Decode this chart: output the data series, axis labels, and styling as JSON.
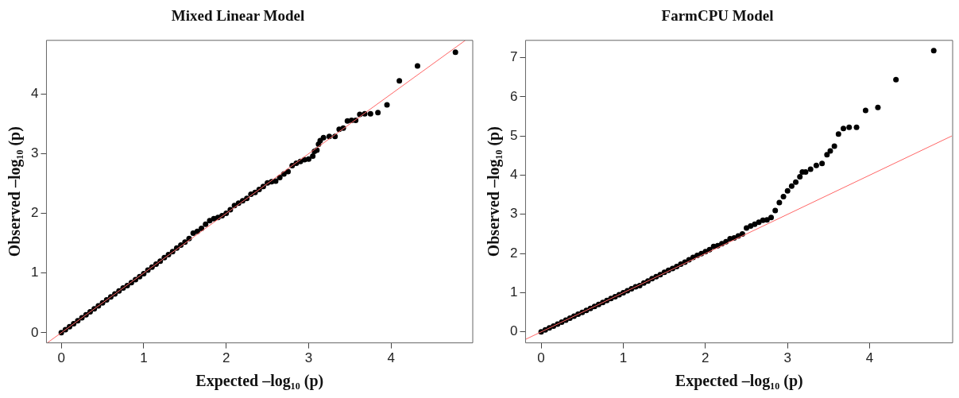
{
  "chart_data": [
    {
      "type": "scatter",
      "title": "Mixed Linear Model",
      "xlabel": "Expected –log₁₀ (p)",
      "ylabel": "Observed –log₁₀ (p)",
      "xlim": [
        -0.18,
        4.99
      ],
      "ylim": [
        -0.17,
        4.9
      ],
      "xticks": [
        0,
        1,
        2,
        3,
        4
      ],
      "yticks": [
        0,
        1,
        2,
        3,
        4
      ],
      "series": [
        {
          "type": "scatter",
          "marker": "circle",
          "color": "#000000",
          "x": [
            0,
            0.05,
            0.1,
            0.15,
            0.2,
            0.25,
            0.3,
            0.35,
            0.4,
            0.45,
            0.5,
            0.55,
            0.6,
            0.65,
            0.7,
            0.75,
            0.8,
            0.85,
            0.9,
            0.95,
            1.0,
            1.05,
            1.1,
            1.15,
            1.2,
            1.25,
            1.3,
            1.35,
            1.4,
            1.45,
            1.5,
            1.55,
            1.6,
            1.65,
            1.7,
            1.75,
            1.8,
            1.85,
            1.9,
            1.95,
            2.0,
            2.05,
            2.1,
            2.15,
            2.2,
            2.25,
            2.3,
            2.35,
            2.4,
            2.45,
            2.5,
            2.55,
            2.6,
            2.65,
            2.7,
            2.75,
            2.8,
            2.85,
            2.9,
            2.95,
            3.0,
            3.05,
            3.07,
            3.1,
            3.12,
            3.14,
            3.18,
            3.25,
            3.32,
            3.37,
            3.42,
            3.47,
            3.52,
            3.57,
            3.62,
            3.68,
            3.75,
            3.84,
            3.95,
            4.1,
            4.32,
            4.78
          ],
          "values": [
            0,
            0.05,
            0.1,
            0.15,
            0.2,
            0.25,
            0.3,
            0.35,
            0.4,
            0.45,
            0.5,
            0.55,
            0.6,
            0.65,
            0.7,
            0.75,
            0.79,
            0.84,
            0.89,
            0.94,
            0.99,
            1.05,
            1.1,
            1.15,
            1.2,
            1.26,
            1.31,
            1.36,
            1.42,
            1.47,
            1.52,
            1.58,
            1.67,
            1.7,
            1.75,
            1.82,
            1.88,
            1.91,
            1.93,
            1.96,
            2.0,
            2.06,
            2.13,
            2.17,
            2.21,
            2.25,
            2.32,
            2.35,
            2.4,
            2.45,
            2.51,
            2.53,
            2.54,
            2.6,
            2.66,
            2.7,
            2.8,
            2.84,
            2.87,
            2.9,
            2.91,
            2.96,
            3.04,
            3.06,
            3.16,
            3.22,
            3.27,
            3.29,
            3.29,
            3.41,
            3.43,
            3.55,
            3.56,
            3.56,
            3.66,
            3.67,
            3.67,
            3.69,
            3.82,
            4.22,
            4.47,
            4.7
          ]
        },
        {
          "type": "line",
          "color": "#ff6666",
          "x": [
            -0.17,
            4.9
          ],
          "values": [
            -0.17,
            4.9
          ]
        }
      ]
    },
    {
      "type": "scatter",
      "title": "FarmCPU Model",
      "xlabel": "Expected –log₁₀ (p)",
      "ylabel": "Observed –log₁₀ (p)",
      "xlim": [
        -0.19,
        5.01
      ],
      "ylim": [
        -0.28,
        7.44
      ],
      "xticks": [
        0,
        1,
        2,
        3,
        4
      ],
      "yticks": [
        0,
        1,
        2,
        3,
        4,
        5,
        6,
        7
      ],
      "series": [
        {
          "type": "scatter",
          "marker": "circle",
          "color": "#000000",
          "x": [
            0,
            0.05,
            0.1,
            0.15,
            0.2,
            0.25,
            0.3,
            0.35,
            0.4,
            0.45,
            0.5,
            0.55,
            0.6,
            0.65,
            0.7,
            0.75,
            0.8,
            0.85,
            0.9,
            0.95,
            1.0,
            1.05,
            1.1,
            1.15,
            1.2,
            1.25,
            1.3,
            1.35,
            1.4,
            1.45,
            1.5,
            1.55,
            1.6,
            1.65,
            1.7,
            1.75,
            1.8,
            1.85,
            1.9,
            1.95,
            2.0,
            2.05,
            2.1,
            2.15,
            2.2,
            2.25,
            2.3,
            2.35,
            2.4,
            2.45,
            2.5,
            2.55,
            2.6,
            2.65,
            2.7,
            2.75,
            2.8,
            2.85,
            2.9,
            2.95,
            3.0,
            3.05,
            3.1,
            3.15,
            3.18,
            3.22,
            3.28,
            3.35,
            3.42,
            3.48,
            3.52,
            3.57,
            3.62,
            3.68,
            3.75,
            3.84,
            3.95,
            4.1,
            4.32,
            4.78
          ],
          "values": [
            0,
            0.05,
            0.1,
            0.15,
            0.2,
            0.25,
            0.3,
            0.35,
            0.4,
            0.45,
            0.5,
            0.55,
            0.6,
            0.65,
            0.7,
            0.75,
            0.8,
            0.85,
            0.9,
            0.95,
            1.0,
            1.05,
            1.1,
            1.15,
            1.18,
            1.25,
            1.3,
            1.36,
            1.41,
            1.46,
            1.52,
            1.57,
            1.62,
            1.67,
            1.73,
            1.78,
            1.84,
            1.9,
            1.95,
            2.0,
            2.05,
            2.1,
            2.18,
            2.2,
            2.25,
            2.3,
            2.38,
            2.4,
            2.45,
            2.5,
            2.65,
            2.7,
            2.75,
            2.8,
            2.85,
            2.86,
            2.92,
            3.1,
            3.3,
            3.45,
            3.6,
            3.72,
            3.82,
            3.96,
            4.08,
            4.08,
            4.15,
            4.25,
            4.3,
            4.52,
            4.62,
            4.74,
            5.05,
            5.19,
            5.22,
            5.22,
            5.65,
            5.73,
            6.44,
            7.18
          ]
        },
        {
          "type": "line",
          "color": "#ff6666",
          "x": [
            -0.19,
            5.0
          ],
          "values": [
            -0.19,
            5.0
          ]
        }
      ]
    }
  ]
}
